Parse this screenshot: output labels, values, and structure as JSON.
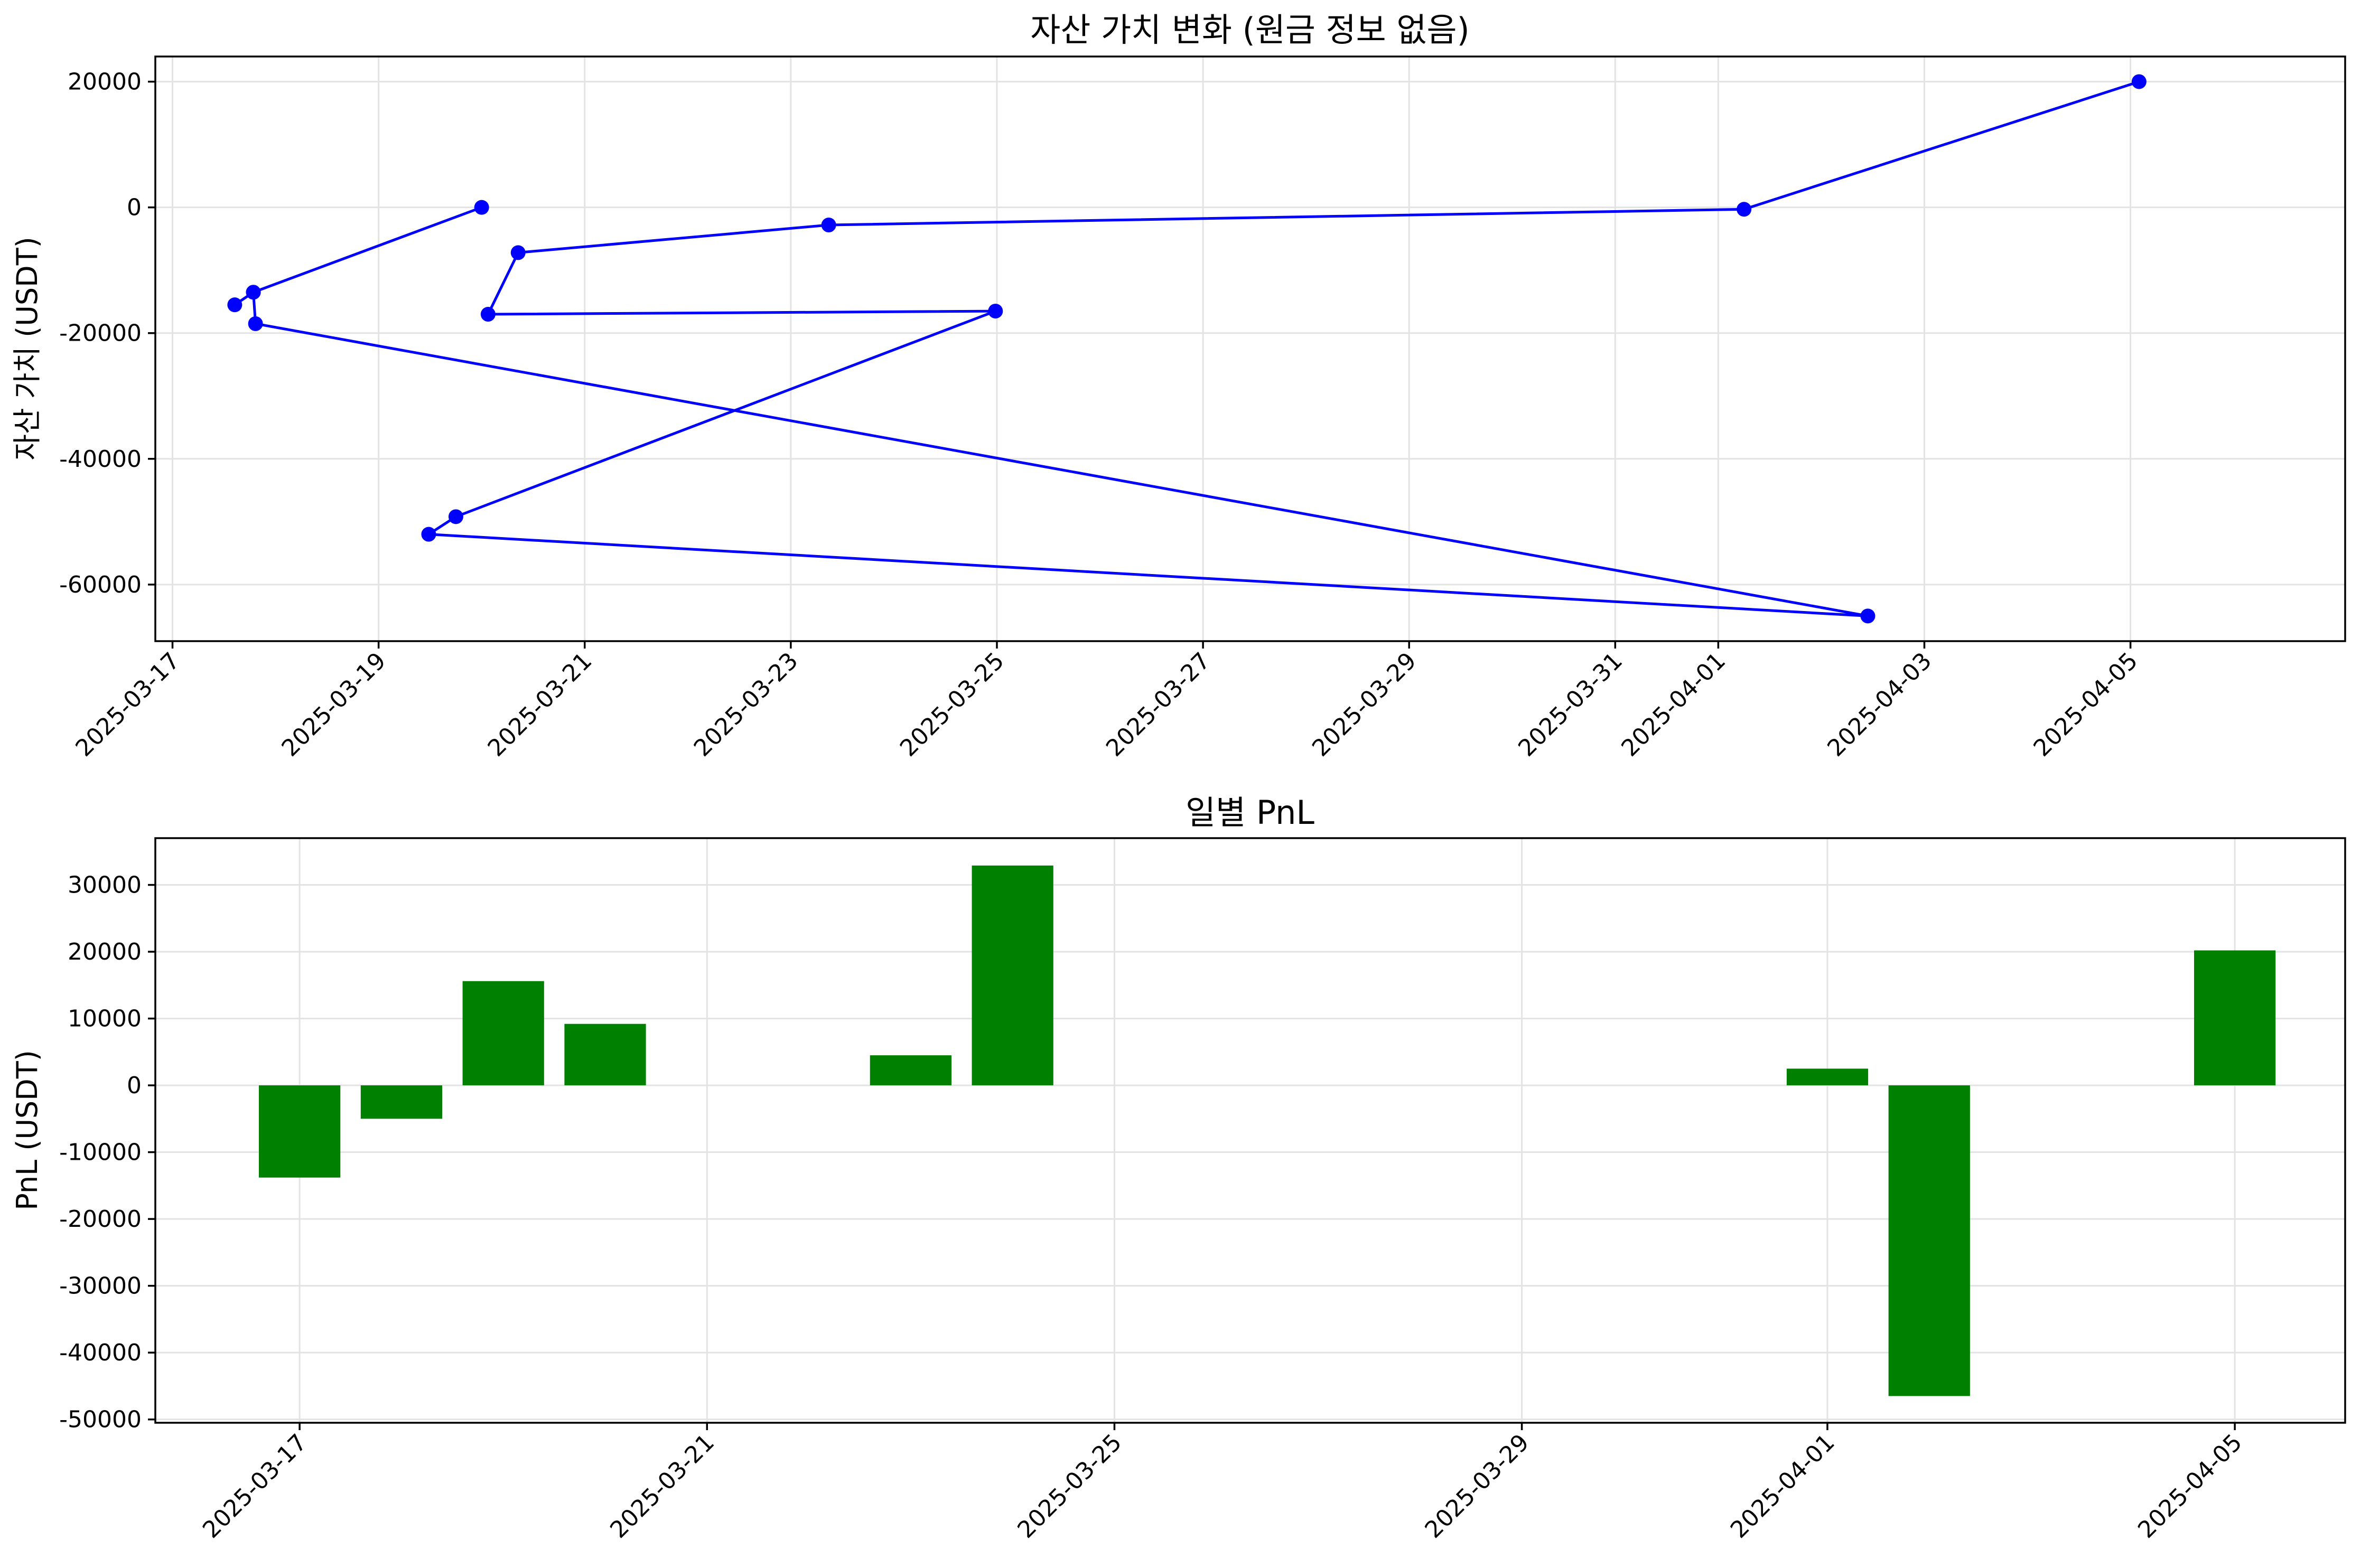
{
  "chart_data": [
    {
      "type": "line",
      "title": "자산 가치 변화 (원금 정보 없음)",
      "xlabel": "",
      "ylabel": "자산 가치 (USDT)",
      "ylim": [
        -69000,
        24000
      ],
      "xlim": [
        "2025-03-16 20:00",
        "2025-04-07 02:00"
      ],
      "grid": true,
      "color": "#0000ff",
      "x_ticks": [
        "2025-03-17",
        "2025-03-19",
        "2025-03-21",
        "2025-03-23",
        "2025-03-25",
        "2025-03-27",
        "2025-03-29",
        "2025-03-31",
        "2025-04-01",
        "2025-04-03",
        "2025-04-05"
      ],
      "y_ticks": [
        20000,
        0,
        -20000,
        -40000,
        -60000
      ],
      "y_tick_labels": [
        "20000",
        "0",
        "-20000",
        "-40000",
        "-60000"
      ],
      "points": [
        {
          "x": "2025-03-20 00:00",
          "y": 0
        },
        {
          "x": "2025-03-17 18:50",
          "y": -13500
        },
        {
          "x": "2025-03-17 14:30",
          "y": -15500
        },
        {
          "x": "2025-03-17 18:50",
          "y": -13500
        },
        {
          "x": "2025-03-17 19:20",
          "y": -18500
        },
        {
          "x": "2025-04-02 10:50",
          "y": -65000
        },
        {
          "x": "2025-03-19 11:40",
          "y": -52000
        },
        {
          "x": "2025-03-19 18:00",
          "y": -49200
        },
        {
          "x": "2025-03-24 23:40",
          "y": -16500
        },
        {
          "x": "2025-03-20 01:30",
          "y": -17000
        },
        {
          "x": "2025-03-20 08:30",
          "y": -7200
        },
        {
          "x": "2025-03-23 08:50",
          "y": -2800
        },
        {
          "x": "2025-04-01 06:00",
          "y": -300
        },
        {
          "x": "2025-04-05 02:00",
          "y": 20000
        }
      ]
    },
    {
      "type": "bar",
      "title": "일별 PnL",
      "xlabel": "",
      "ylabel": "PnL (USDT)",
      "ylim": [
        -50500,
        37000
      ],
      "xlim": [
        "2025-03-15 14:00",
        "2025-04-06 02:00"
      ],
      "grid": true,
      "color": "#008000",
      "bar_width_days": 0.8,
      "x_ticks": [
        "2025-03-17",
        "2025-03-21",
        "2025-03-25",
        "2025-03-29",
        "2025-04-01",
        "2025-04-05"
      ],
      "y_ticks": [
        30000,
        20000,
        10000,
        0,
        -10000,
        -20000,
        -30000,
        -40000,
        -50000
      ],
      "y_tick_labels": [
        "30000",
        "20000",
        "10000",
        "0",
        "-10000",
        "-20000",
        "-30000",
        "-40000",
        "-50000"
      ],
      "categories": [
        "2025-03-17",
        "2025-03-18",
        "2025-03-19",
        "2025-03-20",
        "2025-03-23",
        "2025-03-24",
        "2025-04-01",
        "2025-04-02",
        "2025-04-05"
      ],
      "values": [
        -13800,
        -5000,
        15600,
        9200,
        4500,
        32900,
        2500,
        -46500,
        20200
      ]
    }
  ]
}
